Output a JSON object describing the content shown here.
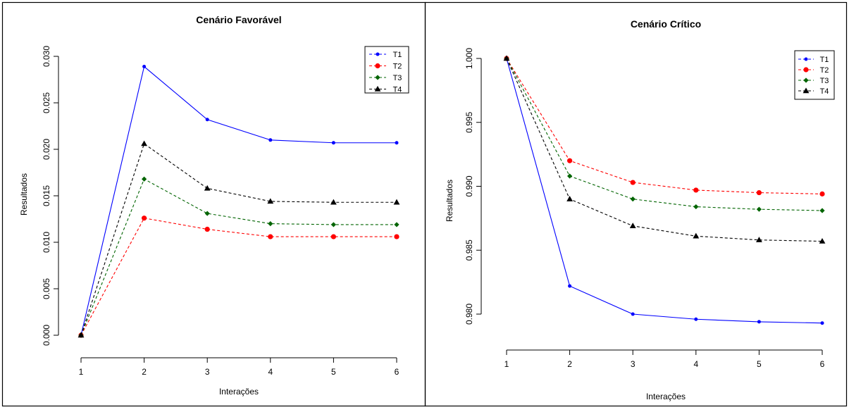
{
  "chart_data": [
    {
      "type": "line",
      "title": "Cenário Favorável",
      "xlabel": "Interações",
      "ylabel": "Resultados",
      "x": [
        1,
        2,
        3,
        4,
        5,
        6
      ],
      "xlim": [
        1,
        6
      ],
      "ylim": [
        0,
        0.03
      ],
      "xticks": [
        "1",
        "2",
        "3",
        "4",
        "5",
        "6"
      ],
      "yticks": [
        "0.000",
        "0.005",
        "0.010",
        "0.015",
        "0.020",
        "0.025",
        "0.030"
      ],
      "grid": false,
      "legend_position": "top-right",
      "series": [
        {
          "name": "T1",
          "color": "#0000ff",
          "marker": "circle-small",
          "values": [
            0.0,
            0.0289,
            0.0232,
            0.021,
            0.0207,
            0.0207
          ]
        },
        {
          "name": "T2",
          "color": "#ff0000",
          "marker": "circle",
          "values": [
            0.0,
            0.0126,
            0.0114,
            0.0106,
            0.0106,
            0.0106
          ]
        },
        {
          "name": "T3",
          "color": "#006400",
          "marker": "diamond",
          "values": [
            0.0,
            0.0168,
            0.0131,
            0.012,
            0.0119,
            0.0119
          ]
        },
        {
          "name": "T4",
          "color": "#000000",
          "marker": "triangle",
          "values": [
            0.0,
            0.0206,
            0.0158,
            0.0144,
            0.0143,
            0.0143
          ]
        }
      ]
    },
    {
      "type": "line",
      "title": "Cenário Crítico",
      "xlabel": "Interações",
      "ylabel": "Resultados",
      "x": [
        1,
        2,
        3,
        4,
        5,
        6
      ],
      "xlim": [
        1,
        6
      ],
      "ylim": [
        0.98,
        1.0
      ],
      "xticks": [
        "1",
        "2",
        "3",
        "4",
        "5",
        "6"
      ],
      "yticks": [
        "0.980",
        "0.985",
        "0.990",
        "0.995",
        "1.000"
      ],
      "grid": false,
      "legend_position": "top-right",
      "series": [
        {
          "name": "T1",
          "color": "#0000ff",
          "marker": "circle-small",
          "values": [
            1.0,
            0.9822,
            0.98,
            0.9796,
            0.9794,
            0.9793
          ]
        },
        {
          "name": "T2",
          "color": "#ff0000",
          "marker": "circle",
          "values": [
            1.0,
            0.992,
            0.9903,
            0.9897,
            0.9895,
            0.9894
          ]
        },
        {
          "name": "T3",
          "color": "#006400",
          "marker": "diamond",
          "values": [
            1.0,
            0.9908,
            0.989,
            0.9884,
            0.9882,
            0.9881
          ]
        },
        {
          "name": "T4",
          "color": "#000000",
          "marker": "triangle",
          "values": [
            1.0,
            0.989,
            0.9869,
            0.9861,
            0.9858,
            0.9857
          ]
        }
      ]
    }
  ]
}
